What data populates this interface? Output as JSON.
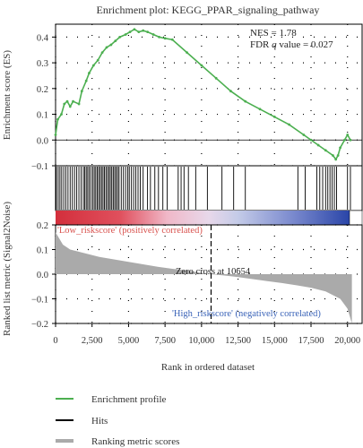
{
  "chart_data": {
    "type": "line",
    "title": "Enrichment plot: KEGG_PPAR_signaling_pathway",
    "annotation": {
      "nes": "NES = 1.78",
      "fdr_prefix": "FDR ",
      "fdr_q": "q",
      "fdr_suffix": " value = 0.027"
    },
    "es_panel": {
      "ylabel": "Enrichment score (ES)",
      "ylim": [
        -0.1,
        0.45
      ],
      "yticks": [
        0.4,
        0.3,
        0.2,
        0.1,
        0.0,
        -0.1
      ],
      "ytick_labels": [
        "0.4",
        "0.3",
        "0.2",
        "0.1",
        "0.0",
        "−0.1"
      ],
      "grid": "dotted",
      "series": {
        "name": "Enrichment profile",
        "color": "#4caf50",
        "x": [
          0,
          150,
          400,
          600,
          800,
          1000,
          1200,
          1600,
          1800,
          2100,
          2300,
          2600,
          2900,
          3200,
          3500,
          3800,
          4100,
          4400,
          4800,
          5100,
          5400,
          5700,
          6000,
          6300,
          6700,
          7100,
          7500,
          8000,
          9000,
          10000,
          11000,
          12000,
          13000,
          14000,
          15000,
          16000,
          17000,
          17500,
          18000,
          18500,
          19000,
          19200,
          19350,
          19500,
          19800,
          20000,
          20200
        ],
        "y": [
          0.02,
          0.08,
          0.1,
          0.14,
          0.15,
          0.13,
          0.15,
          0.14,
          0.19,
          0.23,
          0.26,
          0.29,
          0.31,
          0.34,
          0.36,
          0.37,
          0.385,
          0.4,
          0.41,
          0.42,
          0.43,
          0.42,
          0.425,
          0.42,
          0.41,
          0.4,
          0.395,
          0.39,
          0.34,
          0.29,
          0.24,
          0.19,
          0.15,
          0.12,
          0.09,
          0.06,
          0.02,
          0.0,
          -0.02,
          -0.04,
          -0.06,
          -0.075,
          -0.06,
          -0.03,
          0.0,
          0.02,
          0.0
        ]
      }
    },
    "hits_panel": {
      "color": "#000000",
      "hit_positions": [
        50,
        180,
        300,
        420,
        560,
        700,
        850,
        1000,
        1150,
        1300,
        1450,
        1600,
        1750,
        1900,
        2000,
        2100,
        2200,
        2300,
        2420,
        2550,
        2650,
        2750,
        2850,
        2950,
        3050,
        3150,
        3250,
        3350,
        3450,
        3550,
        3650,
        3750,
        3850,
        3950,
        4050,
        4150,
        4250,
        4350,
        4500,
        4650,
        4800,
        4950,
        5050,
        5200,
        5350,
        5500,
        5650,
        5800,
        6000,
        6300,
        6500,
        6800,
        7050,
        7350,
        7650,
        8400,
        8600,
        8800,
        9100,
        9600,
        10400,
        11400,
        12200,
        13000,
        16600,
        17100,
        17900,
        18100,
        18300,
        18500,
        18650,
        18800,
        18950,
        19100,
        19250,
        20000,
        20200
      ]
    },
    "ranking_panel": {
      "ylabel": "Ranked list metric (Signal2Noise)",
      "xlabel": "Rank in ordered dataset",
      "xlim": [
        0,
        21000
      ],
      "ylim": [
        -0.2,
        0.2
      ],
      "xticks": [
        0,
        2500,
        5000,
        7500,
        10000,
        12500,
        15000,
        17500,
        20000
      ],
      "xtick_labels": [
        "0",
        "2,500",
        "5,000",
        "7,500",
        "10,000",
        "12,500",
        "15,000",
        "17,500",
        "20,000"
      ],
      "yticks": [
        0.2,
        0.1,
        0.0,
        -0.1,
        -0.2
      ],
      "ytick_labels": [
        "0.2",
        "0.1",
        "0.0",
        "−0.1",
        "−0.2"
      ],
      "fill_color": "#aaaaaa",
      "zero_cross_rank": 10654,
      "zero_cross_label": "Zero cross at 10654",
      "positive_label": "'Low_riskscore' (positively correlated)",
      "positive_label_color": "#d9534f",
      "negative_label": "'High_riskscore' (negatively correlated)",
      "negative_label_color": "#3a63b8",
      "x": [
        0,
        500,
        1000,
        2000,
        3000,
        4000,
        5000,
        6000,
        7000,
        8000,
        9000,
        10000,
        10654,
        11500,
        12500,
        13500,
        14500,
        15500,
        16500,
        17500,
        18500,
        19000,
        19500,
        20000,
        20300
      ],
      "y": [
        0.17,
        0.12,
        0.1,
        0.085,
        0.07,
        0.06,
        0.05,
        0.04,
        0.03,
        0.022,
        0.015,
        0.005,
        0.0,
        -0.005,
        -0.012,
        -0.02,
        -0.028,
        -0.036,
        -0.045,
        -0.055,
        -0.07,
        -0.085,
        -0.1,
        -0.14,
        -0.2
      ]
    },
    "legend": {
      "placement": "bottom",
      "entries": [
        {
          "label": "Enrichment profile",
          "color": "#4caf50"
        },
        {
          "label": "Hits",
          "color": "#000000"
        },
        {
          "label": "Ranking metric scores",
          "color": "#aaaaaa"
        }
      ]
    }
  }
}
